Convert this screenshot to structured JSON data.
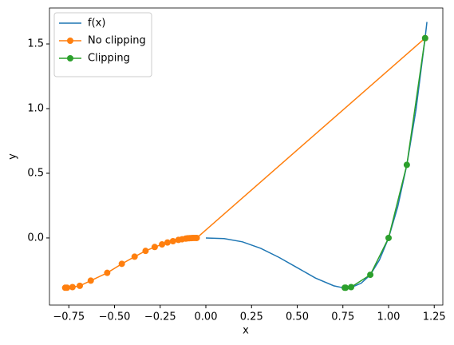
{
  "chart_data": {
    "type": "line",
    "xlabel": "x",
    "ylabel": "y",
    "xlim": [
      -0.856,
      1.297
    ],
    "ylim": [
      -0.519,
      1.778
    ],
    "xticks": [
      {
        "value": -0.75,
        "label": "−0.75"
      },
      {
        "value": -0.5,
        "label": "−0.50"
      },
      {
        "value": -0.25,
        "label": "−0.25"
      },
      {
        "value": 0,
        "label": "0.00"
      },
      {
        "value": 0.25,
        "label": "0.25"
      },
      {
        "value": 0.5,
        "label": "0.50"
      },
      {
        "value": 0.75,
        "label": "0.75"
      },
      {
        "value": 1,
        "label": "1.00"
      },
      {
        "value": 1.25,
        "label": "1.25"
      }
    ],
    "yticks": [
      {
        "value": 0,
        "label": "0.0"
      },
      {
        "value": 0.5,
        "label": "0.5"
      },
      {
        "value": 1,
        "label": "1.0"
      },
      {
        "value": 1.5,
        "label": "1.5"
      }
    ],
    "legend": "upper left",
    "series": [
      {
        "name": "f(x)",
        "color": "#1f77b4",
        "marker": false,
        "x": [
          0,
          0.1,
          0.2,
          0.3,
          0.4,
          0.5,
          0.6,
          0.7,
          0.75,
          0.8,
          0.85,
          0.9,
          0.95,
          1.0,
          1.05,
          1.1,
          1.15,
          1.2,
          1.21
        ],
        "values": [
          0,
          -0.005,
          -0.03,
          -0.08,
          -0.15,
          -0.23,
          -0.31,
          -0.37,
          -0.385,
          -0.38,
          -0.35,
          -0.285,
          -0.17,
          0,
          0.24,
          0.565,
          0.99,
          1.545,
          1.67
        ]
      },
      {
        "name": "No clipping",
        "color": "#ff7f0e",
        "marker": true,
        "x": [
          -0.77,
          -0.76,
          -0.73,
          -0.69,
          -0.63,
          -0.54,
          -0.46,
          -0.39,
          -0.33,
          -0.28,
          -0.24,
          -0.21,
          -0.18,
          -0.15,
          -0.13,
          -0.11,
          -0.1,
          -0.09,
          -0.08,
          -0.07,
          -0.06,
          -0.05,
          1.2
        ],
        "values": [
          -0.385,
          -0.385,
          -0.38,
          -0.37,
          -0.33,
          -0.27,
          -0.2,
          -0.145,
          -0.1,
          -0.07,
          -0.05,
          -0.035,
          -0.025,
          -0.015,
          -0.01,
          -0.005,
          -0.003,
          -0.002,
          -0.001,
          0,
          0,
          0,
          1.545
        ]
      },
      {
        "name": "Clipping",
        "color": "#2ca02c",
        "marker": true,
        "x": [
          0.76,
          0.765,
          0.795,
          0.9,
          1.0,
          1.1,
          1.2
        ],
        "values": [
          -0.385,
          -0.385,
          -0.38,
          -0.285,
          0,
          0.565,
          1.545
        ]
      }
    ]
  }
}
